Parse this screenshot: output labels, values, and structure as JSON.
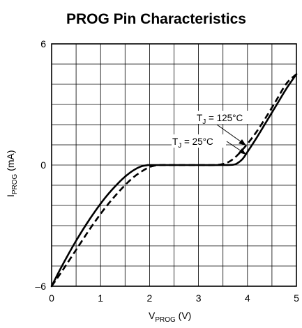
{
  "chart_data": {
    "type": "line",
    "title": "PROG Pin Characteristics",
    "xlabel": {
      "main": "V",
      "sub": "PROG",
      "unit": " (V)"
    },
    "ylabel": {
      "main": "I",
      "sub": "PROG",
      "unit": " (mA)"
    },
    "xlim": [
      0,
      5
    ],
    "ylim": [
      -6,
      6
    ],
    "xticks": [
      "0",
      "1",
      "2",
      "3",
      "4",
      "5"
    ],
    "yticks": [
      {
        "value": 6,
        "label": "6"
      },
      {
        "value": 0,
        "label": "0"
      },
      {
        "value": -6,
        "label": "–6"
      }
    ],
    "grid": true,
    "grid_x_step": 0.5,
    "grid_y_step": 1,
    "series": [
      {
        "annotation": {
          "main": "T",
          "sub": "J",
          "rest": " = 25°C"
        },
        "style": "solid",
        "color": "#000000",
        "x": [
          0,
          0.2,
          0.5,
          0.8,
          1.1,
          1.4,
          1.6,
          1.75,
          1.85,
          1.95,
          2.0,
          2.5,
          3.0,
          3.5,
          3.72,
          3.8,
          3.9,
          4.0,
          4.2,
          4.4,
          4.6,
          4.8,
          5.0
        ],
        "y": [
          -6.0,
          -5.05,
          -3.75,
          -2.6,
          -1.6,
          -0.8,
          -0.38,
          -0.15,
          -0.05,
          -0.01,
          0,
          0,
          0,
          0,
          0.02,
          0.1,
          0.3,
          0.65,
          1.4,
          2.2,
          3.0,
          3.8,
          4.5
        ]
      },
      {
        "annotation": {
          "main": "T",
          "sub": "J",
          "rest": " = 125°C"
        },
        "style": "dashed",
        "color": "#000000",
        "x": [
          0,
          0.2,
          0.5,
          0.8,
          1.1,
          1.4,
          1.65,
          1.85,
          2.0,
          2.1,
          2.2,
          2.5,
          3.0,
          3.3,
          3.5,
          3.65,
          3.8,
          4.0,
          4.2,
          4.4,
          4.6,
          4.8,
          5.0
        ],
        "y": [
          -6.0,
          -5.3,
          -4.2,
          -3.1,
          -2.1,
          -1.25,
          -0.65,
          -0.3,
          -0.1,
          -0.03,
          0,
          0,
          0,
          0,
          0.05,
          0.2,
          0.5,
          1.05,
          1.7,
          2.45,
          3.25,
          4.05,
          4.5
        ]
      }
    ]
  }
}
